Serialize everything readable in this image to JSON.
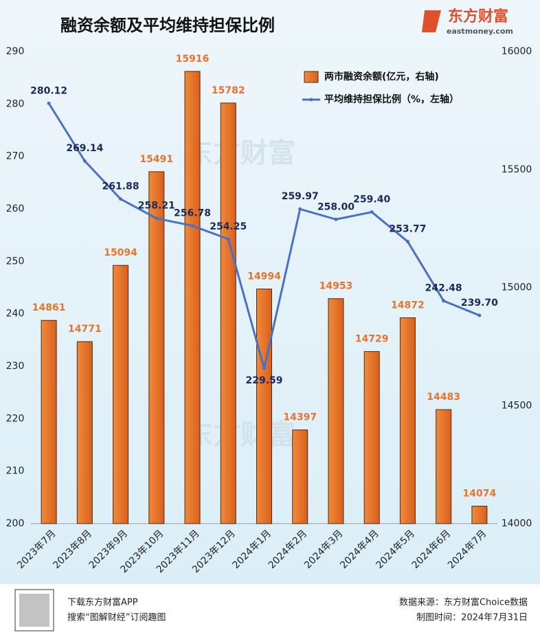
{
  "chart_data": {
    "type": "combo",
    "title": "融资余额及平均维持担保比例",
    "logo": {
      "name": "东方财富",
      "site": "eastmoney.com"
    },
    "categories": [
      "2023年7月",
      "2023年8月",
      "2023年9月",
      "2023年10月",
      "2023年11月",
      "2023年12月",
      "2024年1月",
      "2024年2月",
      "2024年3月",
      "2024年4月",
      "2024年5月",
      "2024年6月",
      "2024年7月"
    ],
    "series": [
      {
        "name": "两市融资余额(亿元，右轴)",
        "type": "bar",
        "axis": "y2",
        "color": "#e8732a",
        "values": [
          14861,
          14771,
          15094,
          15491,
          15916,
          15782,
          14994,
          14397,
          14953,
          14729,
          14872,
          14483,
          14074
        ]
      },
      {
        "name": "平均维持担保比例（%，左轴）",
        "type": "line",
        "color": "#4a70c6",
        "values": [
          280.12,
          269.14,
          261.88,
          258.21,
          256.78,
          254.25,
          229.59,
          259.97,
          258.0,
          259.4,
          253.77,
          242.48,
          239.7
        ],
        "value_labels": [
          "280.12",
          "269.14",
          "261.88",
          "258.21",
          "256.78",
          "254.25",
          "229.59",
          "259.97",
          "258.00",
          "259.40",
          "253.77",
          "242.48",
          "239.70"
        ]
      }
    ],
    "ylim": [
      200,
      290
    ],
    "yticks": [
      200,
      210,
      220,
      230,
      240,
      250,
      260,
      270,
      280,
      290
    ],
    "y2lim": [
      14000,
      16000
    ],
    "y2ticks": [
      14000,
      14500,
      15000,
      15500,
      16000
    ],
    "footer": {
      "app": "下载东方财富APP",
      "search": "搜索“图解财经”订阅趣图",
      "source": "数据来源：东方财富Choice数据",
      "date": "制图时间：2024年7月31日"
    }
  }
}
